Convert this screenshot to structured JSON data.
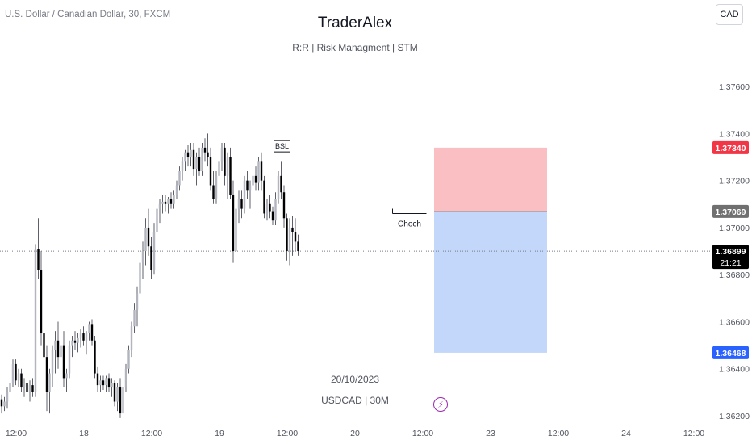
{
  "header": {
    "symbol_title": "U.S. Dollar / Canadian Dollar, 30, FXCM",
    "watermark_title": "TraderAlex",
    "watermark_subtitle": "R:R | Risk Managment | STM",
    "currency_button": "CAD"
  },
  "footer": {
    "date_text": "20/10/2023",
    "symbol_text": "USDCAD | 30M",
    "icon": "lightning-icon"
  },
  "chart_data": {
    "type": "candlestick",
    "title": "U.S. Dollar / Canadian Dollar, 30, FXCM",
    "y_ticks": [
      "1.37600",
      "1.37400",
      "1.37200",
      "1.37000",
      "1.36800",
      "1.36600",
      "1.36400",
      "1.36200"
    ],
    "y_tick_values": [
      1.376,
      1.374,
      1.372,
      1.37,
      1.368,
      1.366,
      1.364,
      1.362
    ],
    "ylim": [
      1.3617,
      1.3785
    ],
    "x_ticks": [
      "12:00",
      "18",
      "12:00",
      "19",
      "12:00",
      "20",
      "12:00",
      "23",
      "12:00",
      "24",
      "12:00"
    ],
    "x_tick_index": [
      0,
      24,
      48,
      72,
      96,
      120,
      144,
      168,
      192,
      216,
      240
    ],
    "current_price": "1.36899",
    "countdown": "21:21",
    "annotations": [
      "BSL",
      "Choch"
    ],
    "position": {
      "stop_loss": 1.3734,
      "stop_loss_label": "1.37340",
      "entry": 1.37069,
      "entry_label": "1.37069",
      "take_profit": 1.36468,
      "take_profit_label": "1.36468",
      "loss_color": "#f7a9ad",
      "profit_color": "#a8c6f8",
      "stop_color": "#f23645",
      "target_color": "#2962ff",
      "entry_tag_color": "#707070"
    },
    "candles": [
      [
        1.3627,
        1.3629,
        1.3621,
        1.3624
      ],
      [
        1.3624,
        1.3628,
        1.3622,
        1.3626
      ],
      [
        1.3626,
        1.3632,
        1.3623,
        1.363
      ],
      [
        1.363,
        1.3636,
        1.3628,
        1.3634
      ],
      [
        1.3634,
        1.3644,
        1.3632,
        1.3642
      ],
      [
        1.3642,
        1.3644,
        1.3633,
        1.3635
      ],
      [
        1.3635,
        1.364,
        1.3632,
        1.3638
      ],
      [
        1.3638,
        1.364,
        1.363,
        1.3632
      ],
      [
        1.3632,
        1.3636,
        1.3628,
        1.3634
      ],
      [
        1.3634,
        1.3638,
        1.3628,
        1.363
      ],
      [
        1.363,
        1.3635,
        1.3626,
        1.3633
      ],
      [
        1.3633,
        1.3636,
        1.3628,
        1.363
      ],
      [
        1.363,
        1.3693,
        1.3628,
        1.3691
      ],
      [
        1.3691,
        1.3704,
        1.3678,
        1.3682
      ],
      [
        1.3682,
        1.369,
        1.365,
        1.3655
      ],
      [
        1.3655,
        1.366,
        1.364,
        1.3645
      ],
      [
        1.3645,
        1.365,
        1.3622,
        1.363
      ],
      [
        1.363,
        1.364,
        1.3621,
        1.3638
      ],
      [
        1.3638,
        1.365,
        1.3632,
        1.3648
      ],
      [
        1.3648,
        1.3656,
        1.3638,
        1.3652
      ],
      [
        1.3652,
        1.366,
        1.364,
        1.3645
      ],
      [
        1.3645,
        1.3652,
        1.3638,
        1.365
      ],
      [
        1.365,
        1.3656,
        1.3632,
        1.3636
      ],
      [
        1.3636,
        1.364,
        1.363,
        1.3638
      ],
      [
        1.3638,
        1.3652,
        1.3636,
        1.365
      ],
      [
        1.365,
        1.3654,
        1.3645,
        1.3652
      ],
      [
        1.3652,
        1.3656,
        1.3648,
        1.3651
      ],
      [
        1.3651,
        1.3655,
        1.3647,
        1.3653
      ],
      [
        1.3653,
        1.3657,
        1.3649,
        1.3655
      ],
      [
        1.3655,
        1.3658,
        1.365,
        1.3652
      ],
      [
        1.3652,
        1.3656,
        1.3646,
        1.3655
      ],
      [
        1.3655,
        1.366,
        1.3652,
        1.3659
      ],
      [
        1.3659,
        1.3661,
        1.365,
        1.3652
      ],
      [
        1.3652,
        1.3654,
        1.3636,
        1.3638
      ],
      [
        1.3638,
        1.3641,
        1.363,
        1.3633
      ],
      [
        1.3633,
        1.3637,
        1.363,
        1.3635
      ],
      [
        1.3635,
        1.3637,
        1.3631,
        1.3633
      ],
      [
        1.3633,
        1.3637,
        1.363,
        1.3636
      ],
      [
        1.3636,
        1.3638,
        1.363,
        1.3632
      ],
      [
        1.3632,
        1.3636,
        1.3628,
        1.3634
      ],
      [
        1.3634,
        1.3635,
        1.3624,
        1.3626
      ],
      [
        1.3626,
        1.3634,
        1.3622,
        1.3632
      ],
      [
        1.3632,
        1.3636,
        1.3619,
        1.3621
      ],
      [
        1.3621,
        1.3634,
        1.362,
        1.3632
      ],
      [
        1.3632,
        1.3642,
        1.363,
        1.364
      ],
      [
        1.364,
        1.365,
        1.3638,
        1.3648
      ],
      [
        1.3648,
        1.366,
        1.3645,
        1.3658
      ],
      [
        1.3658,
        1.3668,
        1.3655,
        1.3665
      ],
      [
        1.3665,
        1.3675,
        1.3658,
        1.3672
      ],
      [
        1.3672,
        1.3688,
        1.367,
        1.3685
      ],
      [
        1.3685,
        1.3694,
        1.3678,
        1.369
      ],
      [
        1.369,
        1.3704,
        1.3684,
        1.37
      ],
      [
        1.37,
        1.3708,
        1.3688,
        1.3692
      ],
      [
        1.3692,
        1.3696,
        1.3678,
        1.3682
      ],
      [
        1.3682,
        1.3702,
        1.368,
        1.3698
      ],
      [
        1.3698,
        1.371,
        1.3694,
        1.3708
      ],
      [
        1.3708,
        1.3712,
        1.3702,
        1.371
      ],
      [
        1.371,
        1.3714,
        1.3706,
        1.3711
      ],
      [
        1.3711,
        1.3714,
        1.3707,
        1.371
      ],
      [
        1.371,
        1.3713,
        1.3706,
        1.3712
      ],
      [
        1.3712,
        1.3715,
        1.3708,
        1.371
      ],
      [
        1.371,
        1.3716,
        1.3708,
        1.3714
      ],
      [
        1.3714,
        1.372,
        1.3712,
        1.3718
      ],
      [
        1.3718,
        1.3726,
        1.3716,
        1.3724
      ],
      [
        1.3724,
        1.373,
        1.372,
        1.3728
      ],
      [
        1.3728,
        1.3733,
        1.3724,
        1.3732
      ],
      [
        1.3732,
        1.3735,
        1.3726,
        1.373
      ],
      [
        1.373,
        1.3736,
        1.3726,
        1.3733
      ],
      [
        1.3733,
        1.3736,
        1.3722,
        1.3725
      ],
      [
        1.3725,
        1.3732,
        1.3718,
        1.373
      ],
      [
        1.373,
        1.3734,
        1.3722,
        1.3724
      ],
      [
        1.3724,
        1.3736,
        1.3722,
        1.3734
      ],
      [
        1.3734,
        1.3738,
        1.3728,
        1.3732
      ],
      [
        1.3732,
        1.374,
        1.3726,
        1.373
      ],
      [
        1.373,
        1.3734,
        1.3716,
        1.3718
      ],
      [
        1.3718,
        1.3724,
        1.371,
        1.3712
      ],
      [
        1.3712,
        1.3724,
        1.371,
        1.3722
      ],
      [
        1.3722,
        1.373,
        1.3718,
        1.3728
      ],
      [
        1.3728,
        1.3736,
        1.3724,
        1.3734
      ],
      [
        1.3734,
        1.3736,
        1.3718,
        1.3722
      ],
      [
        1.3722,
        1.3732,
        1.3712,
        1.373
      ],
      [
        1.373,
        1.3734,
        1.3712,
        1.3714
      ],
      [
        1.3714,
        1.372,
        1.3685,
        1.369
      ],
      [
        1.369,
        1.3712,
        1.368,
        1.3708
      ],
      [
        1.3708,
        1.3716,
        1.3702,
        1.3712
      ],
      [
        1.3712,
        1.3716,
        1.3704,
        1.3708
      ],
      [
        1.3708,
        1.3722,
        1.3706,
        1.372
      ],
      [
        1.372,
        1.3724,
        1.3712,
        1.3716
      ],
      [
        1.3716,
        1.372,
        1.3708,
        1.3718
      ],
      [
        1.3718,
        1.3724,
        1.3714,
        1.3722
      ],
      [
        1.3722,
        1.3726,
        1.3716,
        1.3719
      ],
      [
        1.3719,
        1.373,
        1.3716,
        1.3728
      ],
      [
        1.3728,
        1.3732,
        1.3716,
        1.372
      ],
      [
        1.372,
        1.3722,
        1.3704,
        1.3706
      ],
      [
        1.3706,
        1.3712,
        1.3703,
        1.371
      ],
      [
        1.371,
        1.3714,
        1.3704,
        1.3707
      ],
      [
        1.3707,
        1.3709,
        1.3701,
        1.3703
      ],
      [
        1.3703,
        1.3715,
        1.3701,
        1.3712
      ],
      [
        1.3712,
        1.3724,
        1.371,
        1.3722
      ],
      [
        1.3722,
        1.3728,
        1.3712,
        1.3715
      ],
      [
        1.3715,
        1.3718,
        1.37,
        1.3704
      ],
      [
        1.3704,
        1.3706,
        1.3686,
        1.369
      ],
      [
        1.369,
        1.3704,
        1.3684,
        1.37
      ],
      [
        1.37,
        1.3705,
        1.3688,
        1.3698
      ],
      [
        1.3698,
        1.3704,
        1.369,
        1.3694
      ],
      [
        1.3694,
        1.3697,
        1.3688,
        1.369
      ]
    ]
  }
}
